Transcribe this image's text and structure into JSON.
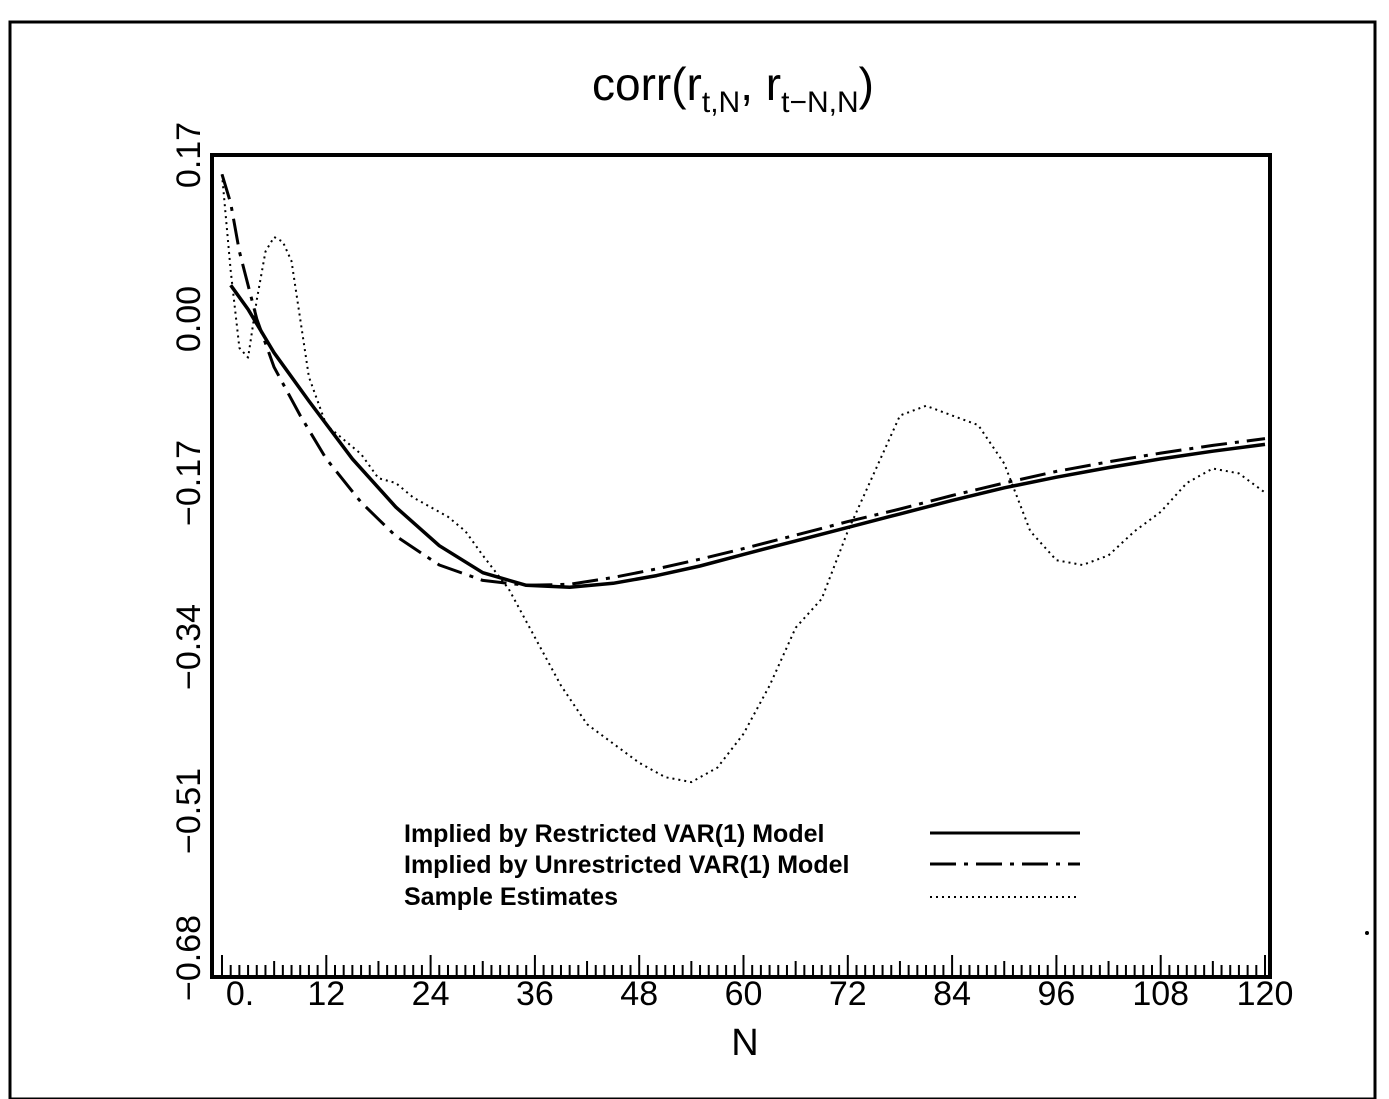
{
  "chart_data": {
    "type": "line",
    "title": {
      "prefix": "corr(r",
      "sub1": "t,N",
      "mid": ", r",
      "sub2": "t−N,N",
      "suffix": ")"
    },
    "xlabel": "N",
    "ylabel": "",
    "xlim": [
      0,
      120
    ],
    "ylim": [
      -0.68,
      0.17
    ],
    "xticks": [
      0,
      12,
      24,
      36,
      48,
      60,
      72,
      84,
      96,
      108,
      120
    ],
    "xtick_labels": [
      "0.",
      "12",
      "24",
      "36",
      "48",
      "60",
      "72",
      "84",
      "96",
      "108",
      "120"
    ],
    "yticks": [
      -0.68,
      -0.51,
      -0.34,
      -0.17,
      0.0,
      0.17
    ],
    "ytick_labels": [
      "−0.68",
      "−0.51",
      "−0.34",
      "−0.17",
      "0.00",
      "0.17"
    ],
    "legend_position": "lower-center",
    "series": [
      {
        "name": "Implied by Restricted VAR(1) Model",
        "style": "solid",
        "x": [
          1,
          3,
          6,
          10,
          15,
          20,
          25,
          30,
          35,
          40,
          45,
          50,
          55,
          60,
          66,
          72,
          78,
          84,
          90,
          96,
          102,
          108,
          114,
          120
        ],
        "y": [
          0.035,
          0.01,
          -0.035,
          -0.085,
          -0.145,
          -0.195,
          -0.235,
          -0.263,
          -0.276,
          -0.278,
          -0.274,
          -0.266,
          -0.256,
          -0.244,
          -0.23,
          -0.216,
          -0.202,
          -0.188,
          -0.175,
          -0.164,
          -0.154,
          -0.145,
          -0.137,
          -0.13
        ]
      },
      {
        "name": "Implied by Unrestricted VAR(1) Model",
        "style": "dashdot",
        "x": [
          0,
          1,
          2,
          4,
          6,
          9,
          12,
          16,
          20,
          25,
          30,
          35,
          40,
          45,
          50,
          55,
          60,
          66,
          72,
          78,
          84,
          90,
          96,
          102,
          108,
          114,
          120
        ],
        "y": [
          0.15,
          0.12,
          0.07,
          0.0,
          -0.05,
          -0.1,
          -0.145,
          -0.19,
          -0.225,
          -0.255,
          -0.271,
          -0.276,
          -0.275,
          -0.268,
          -0.259,
          -0.249,
          -0.238,
          -0.224,
          -0.21,
          -0.197,
          -0.183,
          -0.17,
          -0.158,
          -0.148,
          -0.139,
          -0.131,
          -0.124
        ]
      },
      {
        "name": "Sample Estimates",
        "style": "dotted",
        "x": [
          0,
          1,
          2,
          3,
          4,
          5,
          6,
          7,
          8,
          9,
          10,
          12,
          14,
          16,
          18,
          20,
          22,
          24,
          26,
          28,
          30,
          33,
          36,
          39,
          42,
          45,
          48,
          51,
          54,
          57,
          60,
          63,
          66,
          69,
          72,
          75,
          78,
          81,
          84,
          87,
          90,
          93,
          96,
          99,
          102,
          105,
          108,
          111,
          114,
          117,
          120
        ],
        "y": [
          0.15,
          0.05,
          -0.03,
          -0.04,
          0.02,
          0.07,
          0.085,
          0.08,
          0.06,
          0.0,
          -0.06,
          -0.11,
          -0.125,
          -0.14,
          -0.165,
          -0.17,
          -0.185,
          -0.195,
          -0.205,
          -0.22,
          -0.245,
          -0.28,
          -0.33,
          -0.38,
          -0.42,
          -0.44,
          -0.46,
          -0.475,
          -0.48,
          -0.465,
          -0.43,
          -0.38,
          -0.32,
          -0.29,
          -0.22,
          -0.16,
          -0.1,
          -0.09,
          -0.1,
          -0.11,
          -0.15,
          -0.22,
          -0.25,
          -0.255,
          -0.245,
          -0.22,
          -0.2,
          -0.17,
          -0.155,
          -0.16,
          -0.18
        ]
      }
    ]
  }
}
